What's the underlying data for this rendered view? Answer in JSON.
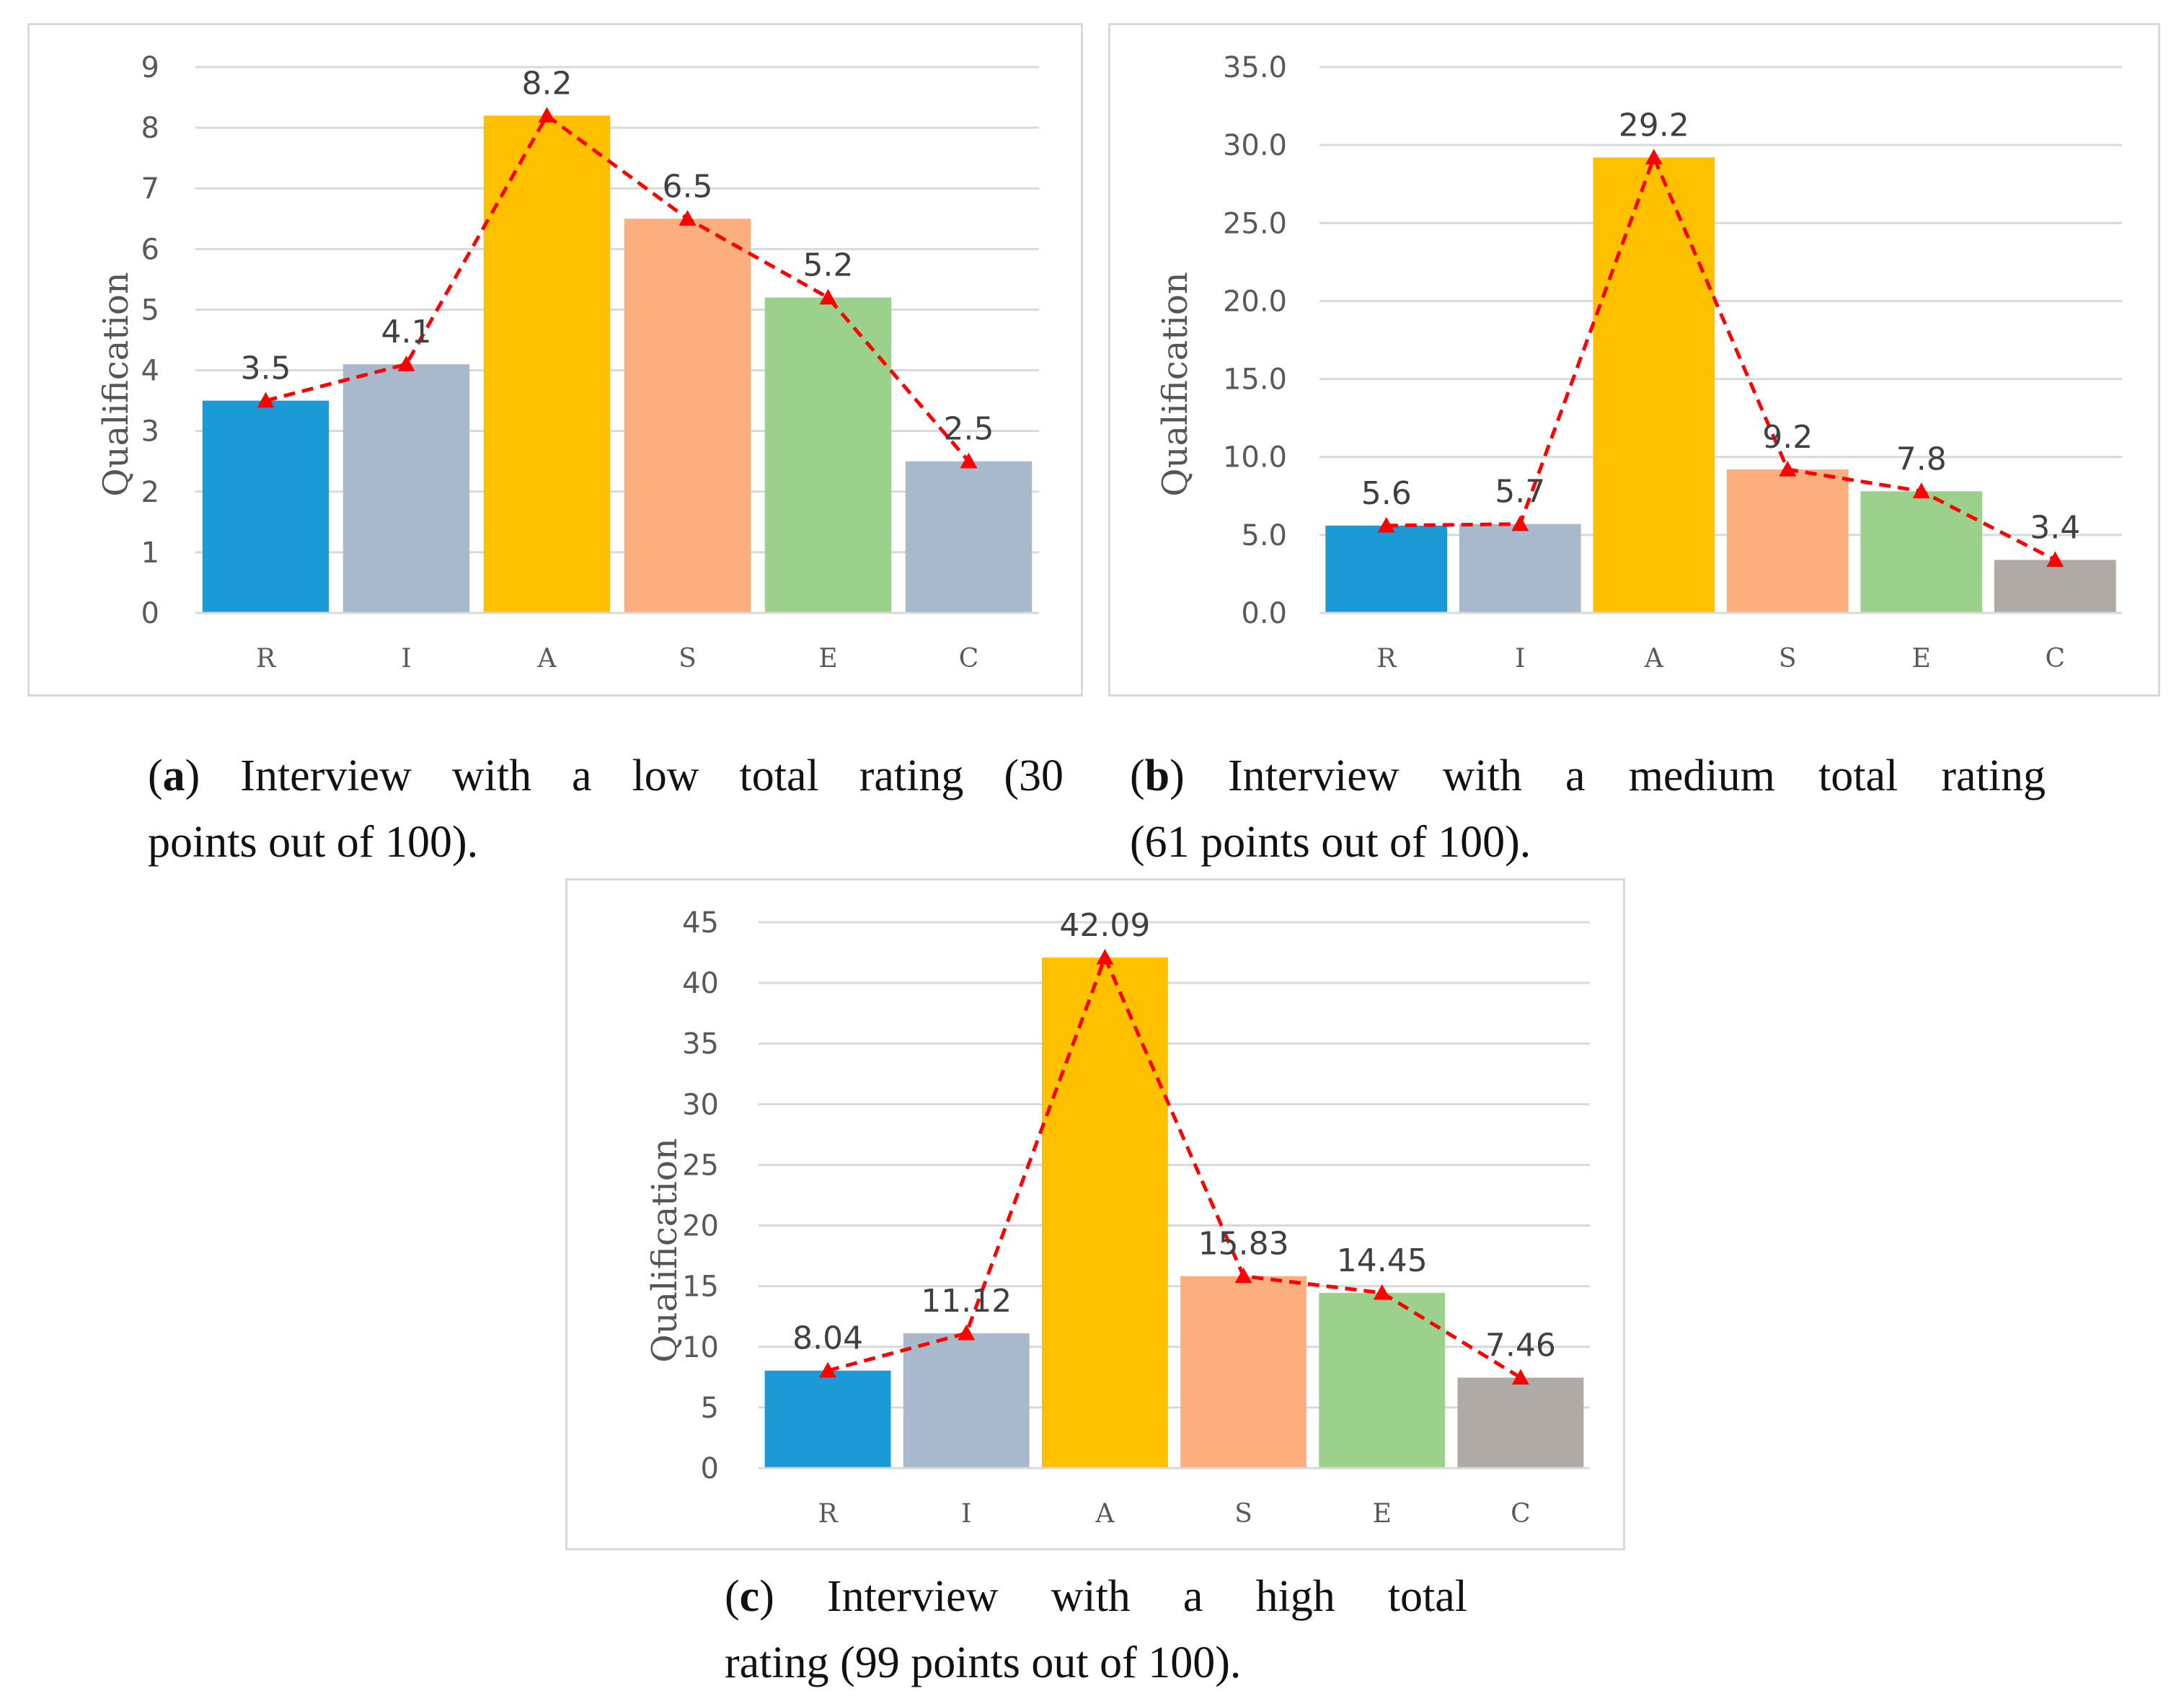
{
  "chart_data": [
    {
      "id": "a",
      "type": "bar",
      "categories": [
        "R",
        "I",
        "A",
        "S",
        "E",
        "C"
      ],
      "values": [
        3.5,
        4.1,
        8.2,
        6.5,
        5.2,
        2.5
      ],
      "value_labels": [
        "3.5",
        "4.1",
        "8.2",
        "6.5",
        "5.2",
        "2.5"
      ],
      "y_ticks": [
        "0",
        "1",
        "2",
        "3",
        "4",
        "5",
        "6",
        "7",
        "8",
        "9"
      ],
      "ylim": [
        0,
        9
      ],
      "ylabel": "Qualification",
      "xlabel": "",
      "grid": true,
      "overlay_line": {
        "color": "#ff0000",
        "style": "dashed",
        "marker": "triangle"
      },
      "bar_colors": [
        "#1b9ad6",
        "#a9b9cc",
        "#ffc000",
        "#fdae7f",
        "#9bd18c",
        "#a9b9cc"
      ],
      "caption": {
        "label": "a",
        "text_line1": ") Interview with a low total rating (30",
        "text_line2": "points out of 100)."
      }
    },
    {
      "id": "b",
      "type": "bar",
      "categories": [
        "R",
        "I",
        "A",
        "S",
        "E",
        "C"
      ],
      "values": [
        5.6,
        5.7,
        29.2,
        9.2,
        7.8,
        3.4
      ],
      "value_labels": [
        "5.6",
        "5.7",
        "29.2",
        "9.2",
        "7.8",
        "3.4"
      ],
      "y_ticks": [
        "0.0",
        "5.0",
        "10.0",
        "15.0",
        "20.0",
        "25.0",
        "30.0",
        "35.0"
      ],
      "ylim": [
        0,
        35
      ],
      "ylabel": "Qualification",
      "xlabel": "",
      "grid": true,
      "overlay_line": {
        "color": "#ff0000",
        "style": "dashed",
        "marker": "triangle"
      },
      "bar_colors": [
        "#1b9ad6",
        "#a9b9cc",
        "#ffc000",
        "#fdae7f",
        "#9bd18c",
        "#b0aaa7"
      ],
      "caption": {
        "label": "b",
        "text_line1": ") Interview with a medium total rating",
        "text_line2": "(61 points out of 100)."
      }
    },
    {
      "id": "c",
      "type": "bar",
      "categories": [
        "R",
        "I",
        "A",
        "S",
        "E",
        "C"
      ],
      "values": [
        8.04,
        11.12,
        42.09,
        15.83,
        14.45,
        7.46
      ],
      "value_labels": [
        "8.04",
        "11.12",
        "42.09",
        "15.83",
        "14.45",
        "7.46"
      ],
      "y_ticks": [
        "0",
        "5",
        "10",
        "15",
        "20",
        "25",
        "30",
        "35",
        "40",
        "45"
      ],
      "ylim": [
        0,
        45
      ],
      "ylabel": "Qualification",
      "xlabel": "",
      "grid": true,
      "overlay_line": {
        "color": "#ff0000",
        "style": "dashed",
        "marker": "triangle"
      },
      "bar_colors": [
        "#1b9ad6",
        "#a9b9cc",
        "#ffc000",
        "#fdae7f",
        "#9bd18c",
        "#b0aaa7"
      ],
      "caption": {
        "label": "c",
        "text_line1": ") Interview with a high total",
        "text_line2": "rating (99 points out of 100)."
      }
    }
  ]
}
